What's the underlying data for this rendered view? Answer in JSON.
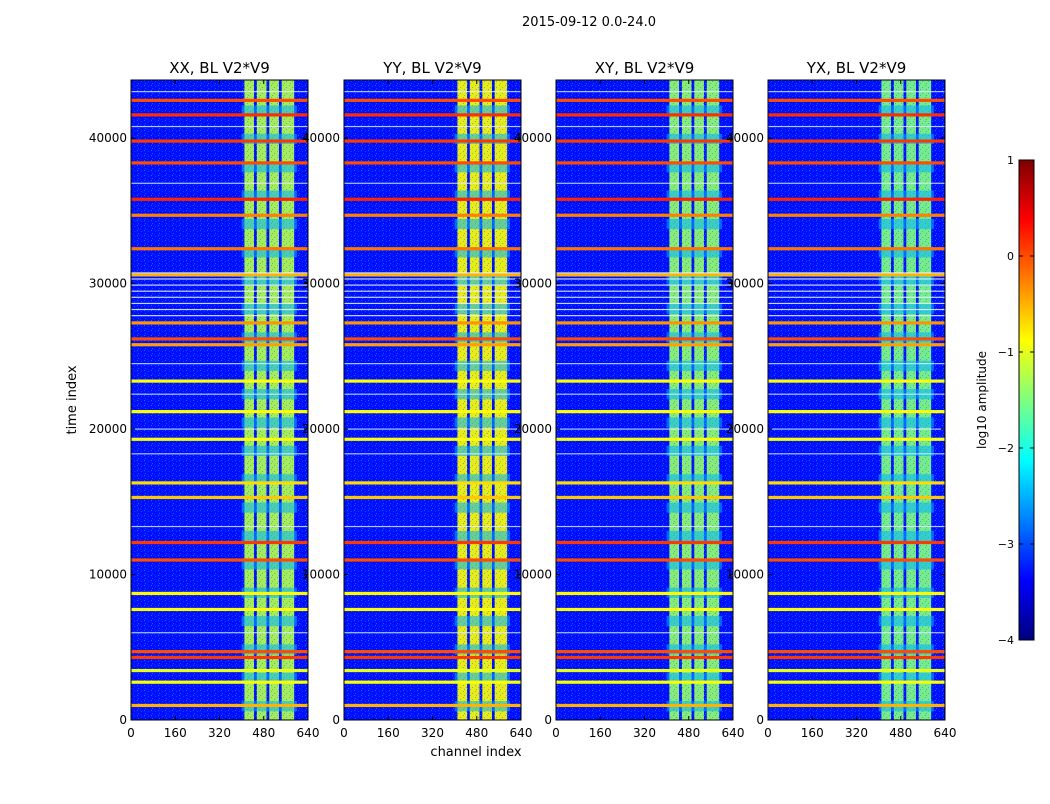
{
  "chart_data": {
    "type": "heatmap",
    "suptitle": "2015-09-12 0.0-24.0",
    "xlabel": "channel index",
    "ylabel": "time index",
    "xlim": [
      0,
      640
    ],
    "ylim": [
      0,
      44000
    ],
    "x_ticks": [
      0,
      160,
      320,
      480,
      640
    ],
    "y_ticks": [
      0,
      10000,
      20000,
      30000,
      40000
    ],
    "panels": [
      {
        "title": "XX, BL V2*V9",
        "band_level": 0.55
      },
      {
        "title": "YY, BL V2*V9",
        "band_level": 0.62
      },
      {
        "title": "XY, BL V2*V9",
        "band_level": 0.52
      },
      {
        "title": "YX, BL V2*V9",
        "band_level": 0.5
      }
    ],
    "band_channels": [
      {
        "from": 410,
        "to": 445
      },
      {
        "from": 455,
        "to": 490
      },
      {
        "from": 500,
        "to": 535
      },
      {
        "from": 545,
        "to": 590
      }
    ],
    "flagged_rows": [
      {
        "t": 1000,
        "level": 0.7
      },
      {
        "t": 2600,
        "level": 0.62
      },
      {
        "t": 3400,
        "level": 0.6
      },
      {
        "t": 4300,
        "level": 0.82
      },
      {
        "t": 4700,
        "level": 0.8
      },
      {
        "t": 7600,
        "level": 0.62
      },
      {
        "t": 8700,
        "level": 0.63
      },
      {
        "t": 11000,
        "level": 0.8
      },
      {
        "t": 12200,
        "level": 0.82
      },
      {
        "t": 15300,
        "level": 0.68
      },
      {
        "t": 16300,
        "level": 0.66
      },
      {
        "t": 19300,
        "level": 0.62
      },
      {
        "t": 21200,
        "level": 0.62
      },
      {
        "t": 23300,
        "level": 0.62
      },
      {
        "t": 25800,
        "level": 0.72
      },
      {
        "t": 26200,
        "level": 0.8
      },
      {
        "t": 27300,
        "level": 0.73
      },
      {
        "t": 30600,
        "level": 0.7
      },
      {
        "t": 32400,
        "level": 0.76
      },
      {
        "t": 34700,
        "level": 0.75
      },
      {
        "t": 35800,
        "level": 0.84
      },
      {
        "t": 38300,
        "level": 0.8
      },
      {
        "t": 39800,
        "level": 0.82
      },
      {
        "t": 41600,
        "level": 0.83
      },
      {
        "t": 42600,
        "level": 0.8
      }
    ],
    "colorbar": {
      "label": "log10 amplitude",
      "min": -4,
      "max": 1,
      "ticks": [
        {
          "value": 1,
          "label": "1"
        },
        {
          "value": 0,
          "label": "0"
        },
        {
          "value": -1,
          "label": "−1"
        },
        {
          "value": -2,
          "label": "−2"
        },
        {
          "value": -3,
          "label": "−3"
        },
        {
          "value": -4,
          "label": "−4"
        }
      ]
    },
    "colormap": [
      "#00007f",
      "#0000ff",
      "#007fff",
      "#00ffff",
      "#7fff7f",
      "#ffff00",
      "#ff7f00",
      "#ff0000",
      "#7f0000"
    ]
  }
}
